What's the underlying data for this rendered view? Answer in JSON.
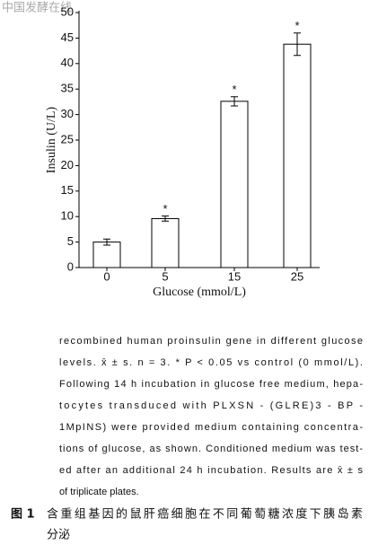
{
  "watermark": "中国发酵在线",
  "chart_data": {
    "type": "bar",
    "categories": [
      "0",
      "5",
      "15",
      "25"
    ],
    "values": [
      5.0,
      9.6,
      32.6,
      43.8
    ],
    "errors": [
      0.6,
      0.5,
      0.9,
      2.2
    ],
    "significance": [
      null,
      "*",
      "*",
      "*"
    ],
    "color": "#ffffff",
    "ylim": [
      0,
      50
    ],
    "yticks": [
      0,
      5,
      10,
      15,
      20,
      25,
      30,
      35,
      40,
      45,
      50
    ],
    "ylabel": "Insulin (U/L)",
    "xlabel": "Glucose (mmol/L)"
  },
  "caption": {
    "english_lines": [
      "recombined human proinsulin gene in different glucose",
      "levels. x̄ ± s. n = 3. * P < 0.05 vs control (0 mmol/L).",
      "Following 14 h incubation in glucose free medium, hepa-",
      "tocytes transduced with PLXSN - (GLRE)3 - BP -",
      "1MpINS) were provided medium containing concentra-",
      "tions of glucose, as shown. Conditioned medium was test-",
      "ed after an additional 24 h incubation. Results are x̄ ± s",
      "of triplicate plates."
    ],
    "figure_label": "图 1",
    "chinese_lines": [
      "含重组基因的鼠肝癌细胞在不同葡萄糖浓度下胰岛素",
      "分泌"
    ]
  }
}
